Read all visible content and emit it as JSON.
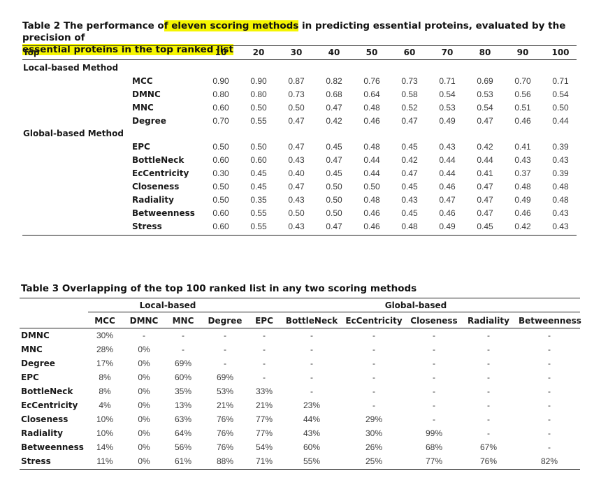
{
  "table2": {
    "caption_pre": "Table 2 The performance o",
    "caption_hl1": "f eleven scoring methods",
    "caption_mid": " in predicting essential proteins, evaluated by the precision of",
    "caption_hl2": "essential proteins in the top ranked list",
    "top_label": "Top",
    "columns": [
      "10",
      "20",
      "30",
      "40",
      "50",
      "60",
      "70",
      "80",
      "90",
      "100"
    ],
    "groups": [
      {
        "label": "Local-based Method",
        "rows": [
          {
            "name": "MCC",
            "values": [
              "0.90",
              "0.90",
              "0.87",
              "0.82",
              "0.76",
              "0.73",
              "0.71",
              "0.69",
              "0.70",
              "0.71"
            ]
          },
          {
            "name": "DMNC",
            "values": [
              "0.80",
              "0.80",
              "0.73",
              "0.68",
              "0.64",
              "0.58",
              "0.54",
              "0.53",
              "0.56",
              "0.54"
            ]
          },
          {
            "name": "MNC",
            "values": [
              "0.60",
              "0.50",
              "0.50",
              "0.47",
              "0.48",
              "0.52",
              "0.53",
              "0.54",
              "0.51",
              "0.50"
            ]
          },
          {
            "name": "Degree",
            "values": [
              "0.70",
              "0.55",
              "0.47",
              "0.42",
              "0.46",
              "0.47",
              "0.49",
              "0.47",
              "0.46",
              "0.44"
            ]
          }
        ]
      },
      {
        "label": "Global-based Method",
        "rows": [
          {
            "name": "EPC",
            "values": [
              "0.50",
              "0.50",
              "0.47",
              "0.45",
              "0.48",
              "0.45",
              "0.43",
              "0.42",
              "0.41",
              "0.39"
            ]
          },
          {
            "name": "BottleNeck",
            "values": [
              "0.60",
              "0.60",
              "0.43",
              "0.47",
              "0.44",
              "0.42",
              "0.44",
              "0.44",
              "0.43",
              "0.43"
            ]
          },
          {
            "name": "EcCentricity",
            "values": [
              "0.30",
              "0.45",
              "0.40",
              "0.45",
              "0.44",
              "0.47",
              "0.44",
              "0.41",
              "0.37",
              "0.39"
            ]
          },
          {
            "name": "Closeness",
            "values": [
              "0.50",
              "0.45",
              "0.47",
              "0.50",
              "0.50",
              "0.45",
              "0.46",
              "0.47",
              "0.48",
              "0.48"
            ]
          },
          {
            "name": "Radiality",
            "values": [
              "0.50",
              "0.35",
              "0.43",
              "0.50",
              "0.48",
              "0.43",
              "0.47",
              "0.47",
              "0.49",
              "0.48"
            ]
          },
          {
            "name": "Betweenness",
            "values": [
              "0.60",
              "0.55",
              "0.50",
              "0.50",
              "0.46",
              "0.45",
              "0.46",
              "0.47",
              "0.46",
              "0.43"
            ]
          },
          {
            "name": "Stress",
            "values": [
              "0.60",
              "0.55",
              "0.43",
              "0.47",
              "0.46",
              "0.48",
              "0.49",
              "0.45",
              "0.42",
              "0.43"
            ]
          }
        ]
      }
    ]
  },
  "table3": {
    "caption": "Table 3 Overlapping of the top 100 ranked list in any two scoring methods",
    "group_local": "Local-based",
    "group_global": "Global-based",
    "columns": [
      "MCC",
      "DMNC",
      "MNC",
      "Degree",
      "EPC",
      "BottleNeck",
      "EcCentricity",
      "Closeness",
      "Radiality",
      "Betweenness"
    ],
    "rows": [
      {
        "name": "DMNC",
        "values": [
          "30%",
          "-",
          "-",
          "-",
          "-",
          "-",
          "-",
          "-",
          "-",
          "-"
        ]
      },
      {
        "name": "MNC",
        "values": [
          "28%",
          "0%",
          "-",
          "-",
          "-",
          "-",
          "-",
          "-",
          "-",
          "-"
        ]
      },
      {
        "name": "Degree",
        "values": [
          "17%",
          "0%",
          "69%",
          "-",
          "-",
          "-",
          "-",
          "-",
          "-",
          "-"
        ]
      },
      {
        "name": "EPC",
        "values": [
          "8%",
          "0%",
          "60%",
          "69%",
          "-",
          "-",
          "-",
          "-",
          "-",
          "-"
        ]
      },
      {
        "name": "BottleNeck",
        "values": [
          "8%",
          "0%",
          "35%",
          "53%",
          "33%",
          "-",
          "-",
          "-",
          "-",
          "-"
        ]
      },
      {
        "name": "EcCentricity",
        "values": [
          "4%",
          "0%",
          "13%",
          "21%",
          "21%",
          "23%",
          "-",
          "-",
          "-",
          "-"
        ]
      },
      {
        "name": "Closeness",
        "values": [
          "10%",
          "0%",
          "63%",
          "76%",
          "77%",
          "44%",
          "29%",
          "-",
          "-",
          "-"
        ]
      },
      {
        "name": "Radiality",
        "values": [
          "10%",
          "0%",
          "64%",
          "76%",
          "77%",
          "43%",
          "30%",
          "99%",
          "-",
          "-"
        ]
      },
      {
        "name": "Betweenness",
        "values": [
          "14%",
          "0%",
          "56%",
          "76%",
          "54%",
          "60%",
          "26%",
          "68%",
          "67%",
          "-"
        ]
      },
      {
        "name": "Stress",
        "values": [
          "11%",
          "0%",
          "61%",
          "88%",
          "71%",
          "55%",
          "25%",
          "77%",
          "76%",
          "82%"
        ]
      }
    ]
  }
}
